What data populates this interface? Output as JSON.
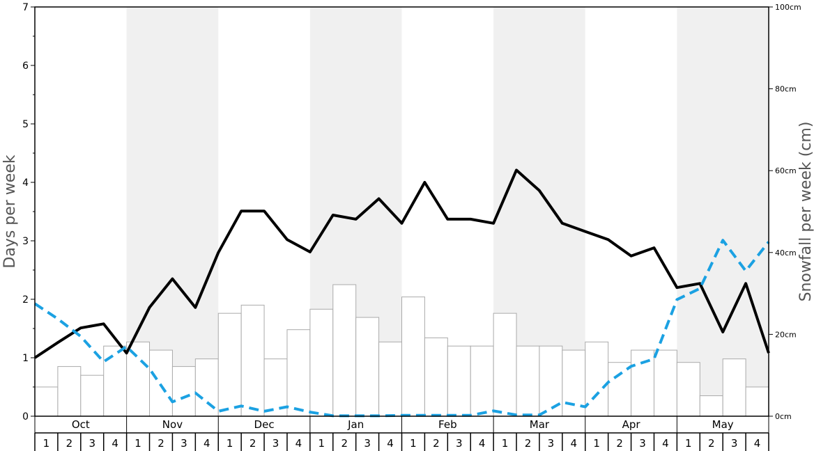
{
  "chart_data": {
    "type": "bar+line",
    "title": "",
    "ylabel_left": "Days per week",
    "ylabel_right": "Snowfall per week (cm)",
    "ylim_left": [
      0,
      7
    ],
    "ylim_right": [
      0,
      100
    ],
    "left_ticks": [
      "0",
      "1",
      "2",
      "3",
      "4",
      "5",
      "6",
      "7"
    ],
    "right_ticks": [
      "0cm",
      "20cm",
      "40cm",
      "60cm",
      "80cm",
      "100cm"
    ],
    "months": [
      "Oct",
      "Nov",
      "Dec",
      "Jan",
      "Feb",
      "Mar",
      "Apr",
      "May"
    ],
    "weeks": [
      "1",
      "2",
      "3",
      "4"
    ],
    "shaded_months": [
      false,
      true,
      false,
      true,
      false,
      true,
      false,
      true
    ],
    "colors": {
      "bar_fill": "#ffffff",
      "bar_stroke": "#aaaaaa",
      "shade": "#f0f0f0",
      "line_black": "#000000",
      "line_blue": "#1ba1e2"
    },
    "bars_days_per_week": [
      0.5,
      0.85,
      0.7,
      1.2,
      1.27,
      1.13,
      0.85,
      0.98,
      1.76,
      1.9,
      0.98,
      1.48,
      1.83,
      2.25,
      1.69,
      1.27,
      2.04,
      1.34,
      1.2,
      1.2,
      1.76,
      1.2,
      1.2,
      1.13,
      1.27,
      0.92,
      1.13,
      1.13,
      0.92,
      0.35,
      0.98,
      0.5
    ],
    "line_black_days_per_week": [
      1.0,
      1.26,
      1.51,
      1.58,
      1.08,
      1.86,
      2.35,
      1.86,
      2.8,
      3.51,
      3.51,
      3.02,
      2.81,
      3.44,
      3.37,
      3.72,
      3.3,
      4.0,
      3.37,
      3.37,
      3.3,
      4.21,
      3.86,
      3.3,
      3.16,
      3.02,
      2.74,
      2.88,
      2.2,
      2.27,
      1.44,
      2.27,
      1.08
    ],
    "line_blue_snowfall_cm": [
      27.5,
      23.8,
      19.5,
      13.3,
      17.0,
      11.6,
      3.5,
      5.7,
      1.2,
      2.5,
      1.2,
      2.3,
      1.0,
      0.1,
      0.1,
      0.1,
      0.2,
      0.2,
      0.2,
      0.2,
      1.3,
      0.3,
      0.3,
      3.4,
      2.3,
      8.3,
      12.2,
      14.0,
      28.5,
      31.2,
      43.0,
      35.5,
      42.6
    ]
  }
}
